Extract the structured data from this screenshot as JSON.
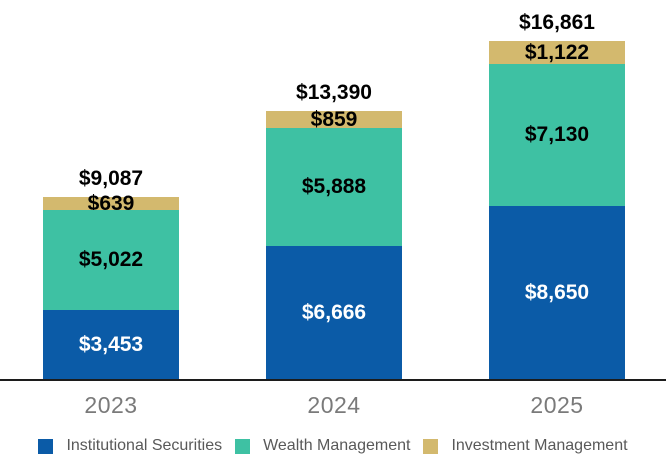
{
  "chart_data": {
    "type": "bar",
    "stacked": true,
    "title": "",
    "xlabel": "",
    "ylabel": "",
    "grid": false,
    "legend_position": "bottom",
    "categories": [
      "2023",
      "2024",
      "2025"
    ],
    "series": [
      {
        "name": "Institutional Securities",
        "color": "#0b5ba7",
        "label_color": "#ffffff",
        "values": [
          3453,
          6666,
          8650
        ],
        "value_labels": [
          "$3,453",
          "$6,666",
          "$8,650"
        ]
      },
      {
        "name": "Wealth Management",
        "color": "#3ec1a3",
        "label_color": "#000000",
        "values": [
          5022,
          5888,
          7130
        ],
        "value_labels": [
          "$5,022",
          "$5,888",
          "$7,130"
        ]
      },
      {
        "name": "Investment Management",
        "color": "#d3b96e",
        "label_color": "#000000",
        "values": [
          639,
          859,
          1122
        ],
        "value_labels": [
          "$639",
          "$859",
          "$1,122"
        ]
      }
    ],
    "totals": [
      9087,
      13390,
      16861
    ],
    "total_labels": [
      "$9,087",
      "$13,390",
      "$16,861"
    ],
    "ylim": [
      0,
      16861
    ]
  },
  "colors": {
    "axis_line": "#1c1c1c",
    "year_label": "#7a7a7a",
    "legend_text": "#595959",
    "background": "#ffffff"
  }
}
